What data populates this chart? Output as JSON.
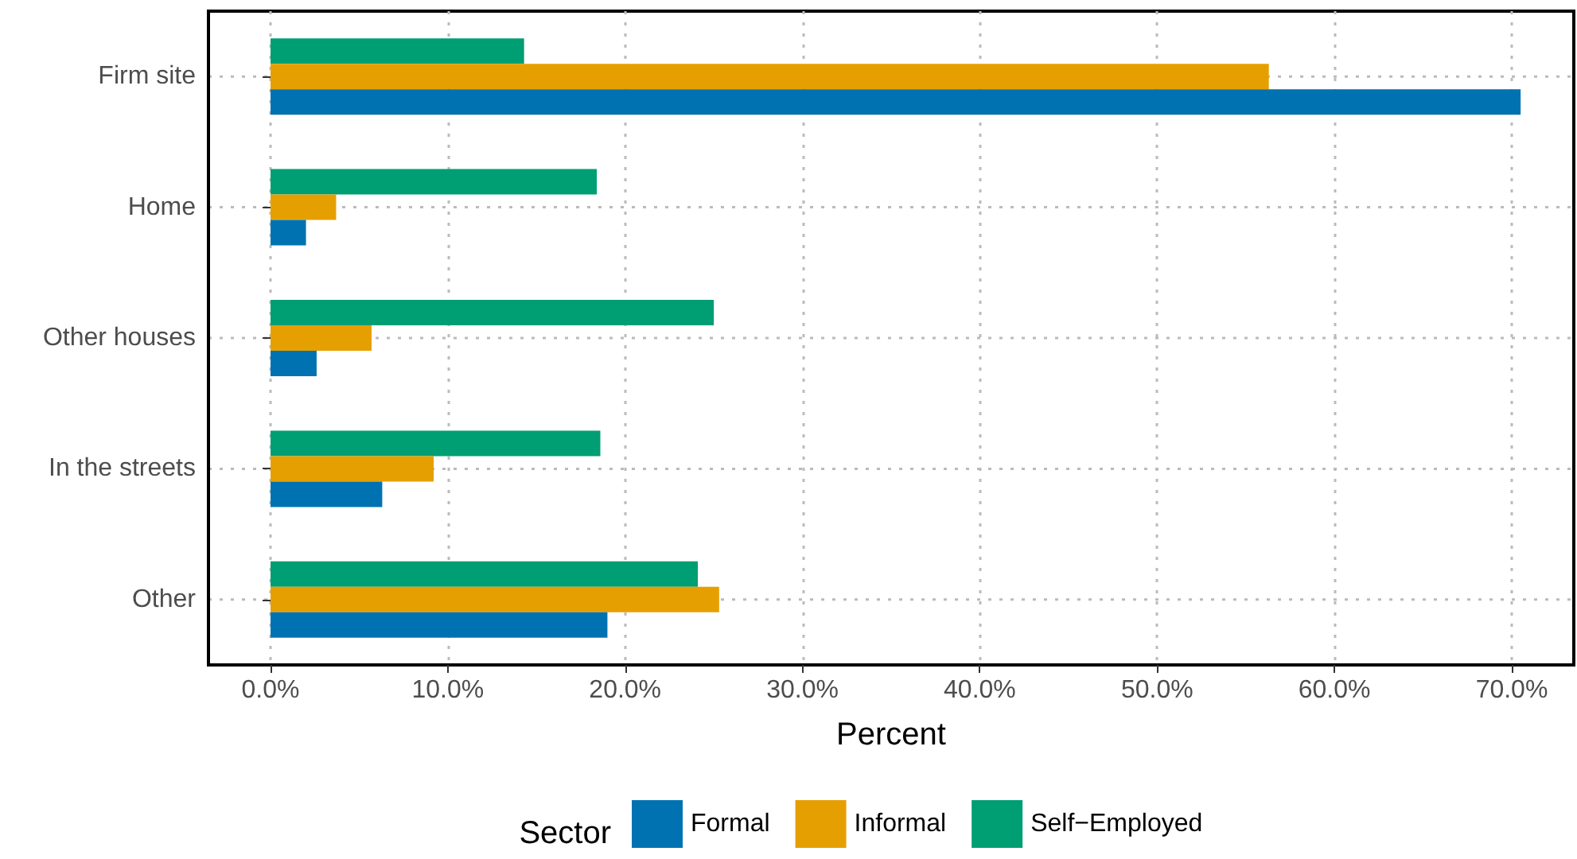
{
  "chart_data": {
    "type": "bar",
    "orientation": "horizontal",
    "xlabel": "Percent",
    "legend_title": "Sector",
    "legend": "bottom",
    "grid": true,
    "categories": [
      "Firm site",
      "Home",
      "Other houses",
      "In the streets",
      "Other"
    ],
    "series": [
      {
        "name": "Formal",
        "color": "#0072b2",
        "values": [
          70.5,
          2.0,
          2.6,
          6.3,
          19.0
        ]
      },
      {
        "name": "Informal",
        "color": "#e69f00",
        "values": [
          56.3,
          3.7,
          5.7,
          9.2,
          25.3
        ]
      },
      {
        "name": "Self−Employed",
        "color": "#009e73",
        "values": [
          14.3,
          18.4,
          25.0,
          18.6,
          24.1
        ]
      }
    ],
    "xlim": [
      -3.5,
      73.5
    ],
    "xticks": [
      {
        "value": 0,
        "label": "0.0%"
      },
      {
        "value": 10,
        "label": "10.0%"
      },
      {
        "value": 20,
        "label": "20.0%"
      },
      {
        "value": 30,
        "label": "30.0%"
      },
      {
        "value": 40,
        "label": "40.0%"
      },
      {
        "value": 50,
        "label": "50.0%"
      },
      {
        "value": 60,
        "label": "60.0%"
      },
      {
        "value": 70,
        "label": "70.0%"
      }
    ]
  }
}
